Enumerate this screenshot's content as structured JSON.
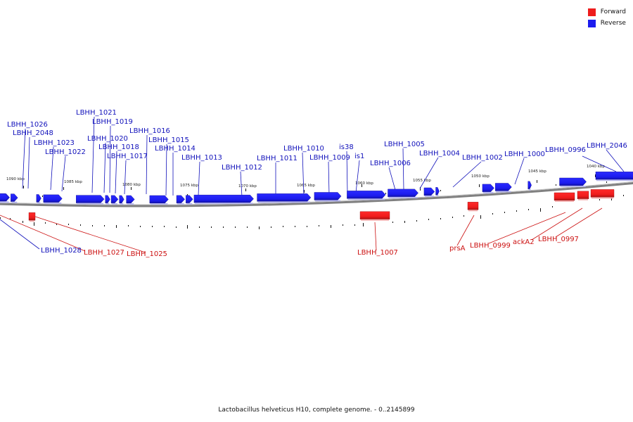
{
  "colors": {
    "forward": "#ee1c1c",
    "reverse": "#1c1cee",
    "forward_text": "#cc1111",
    "reverse_text": "#1111bb",
    "backbone": "#808080"
  },
  "legend": [
    {
      "label": "Forward",
      "color": "#ee1c1c"
    },
    {
      "label": "Reverse",
      "color": "#1c1cee"
    }
  ],
  "caption": "Lactobacillus helveticus H10, complete genome. - 0..2145899",
  "scale_unit": "kbp",
  "scale_labels": [
    "1090 kbp",
    "1085 kbp",
    "1080 kbp",
    "1075 kbp",
    "1070 kbp",
    "1065 kbp",
    "1060 kbp",
    "1055 kbp",
    "1050 kbp",
    "1045 kbp",
    "1040 kbp"
  ],
  "genes": [
    {
      "label": "LBHH_1026",
      "strand": "reverse",
      "start_kbp": 1090.4,
      "end_kbp": 1089.6
    },
    {
      "label": "LBHH_2048",
      "strand": "reverse",
      "start_kbp": 1089.5,
      "end_kbp": 1088.9
    },
    {
      "label": "LBHH_1023",
      "strand": "reverse",
      "start_kbp": 1087.3,
      "end_kbp": 1086.9
    },
    {
      "label": "LBHH_1022",
      "strand": "reverse",
      "start_kbp": 1086.7,
      "end_kbp": 1085.1
    },
    {
      "label": "LBHH_1021",
      "strand": "reverse",
      "start_kbp": 1083.9,
      "end_kbp": 1081.5
    },
    {
      "label": "LBHH_1020",
      "strand": "reverse",
      "start_kbp": 1081.4,
      "end_kbp": 1081.0
    },
    {
      "label": "LBHH_1019",
      "strand": "reverse",
      "start_kbp": 1080.9,
      "end_kbp": 1080.3
    },
    {
      "label": "LBHH_1018",
      "strand": "reverse",
      "start_kbp": 1080.2,
      "end_kbp": 1079.8
    },
    {
      "label": "LBHH_1017",
      "strand": "reverse",
      "start_kbp": 1079.6,
      "end_kbp": 1078.9
    },
    {
      "label": "LBHH_1016",
      "strand": "reverse",
      "start_kbp": 1077.6,
      "end_kbp": 1076.0
    },
    {
      "label": "LBHH_1015",
      "strand": "reverse",
      "start_kbp": 1075.3,
      "end_kbp": 1074.6
    },
    {
      "label": "LBHH_1014",
      "strand": "reverse",
      "start_kbp": 1074.5,
      "end_kbp": 1073.9
    },
    {
      "label": "LBHH_1013",
      "strand": "reverse",
      "start_kbp": 1073.8,
      "end_kbp": 1068.7
    },
    {
      "label": "LBHH_1012",
      "strand": "reverse",
      "start_kbp": 1068.4,
      "end_kbp": 1063.8
    },
    {
      "label": "LBHH_1011",
      "strand": "reverse",
      "start_kbp": 1063.5,
      "end_kbp": 1061.2
    },
    {
      "label": "LBHH_1010",
      "strand": "reverse",
      "start_kbp": 1060.7,
      "end_kbp": 1057.4
    },
    {
      "label": "LBHH_1009",
      "strand": "reverse",
      "start_kbp": 1057.2,
      "end_kbp": 1054.6
    },
    {
      "label": "is38",
      "strand": "reverse",
      "start_kbp": 1054.1,
      "end_kbp": 1053.2
    },
    {
      "label": "is1",
      "strand": "reverse",
      "start_kbp": 1053.1,
      "end_kbp": 1052.8
    },
    {
      "label": "LBHH_1006",
      "strand": "reverse",
      "start_kbp": 1049.1,
      "end_kbp": 1048.1
    },
    {
      "label": "LBHH_1005",
      "strand": "reverse",
      "start_kbp": 1048.0,
      "end_kbp": 1046.6
    },
    {
      "label": "LBHH_1004",
      "strand": "reverse",
      "start_kbp": 1045.2,
      "end_kbp": 1044.9
    },
    {
      "label": "LBHH_1002",
      "strand": "reverse",
      "start_kbp": 1042.5,
      "end_kbp": 1040.2
    },
    {
      "label": "LBHH_1000",
      "strand": "reverse",
      "start_kbp": 1039.4,
      "end_kbp": 1031.5
    },
    {
      "label": "LBHH_0996",
      "strand": "reverse",
      "start_kbp": 1025.5,
      "end_kbp": 1025.0
    },
    {
      "label": "LBHH_2046",
      "strand": "reverse",
      "start_kbp": 1024.8,
      "end_kbp": 1023.4
    },
    {
      "label": "LBHH_1028",
      "strand": "reverse",
      "start_kbp": 1091.6,
      "end_kbp": 1090.6
    },
    {
      "label": "LBHH_1027",
      "strand": "forward",
      "start_kbp": 1091.9,
      "end_kbp": 1091.7
    },
    {
      "label": "LBHH_1025",
      "strand": "forward",
      "start_kbp": 1088.7,
      "end_kbp": 1088.2
    },
    {
      "label": "LBHH_1007",
      "strand": "forward",
      "start_kbp": 1051.6,
      "end_kbp": 1048.5
    },
    {
      "label": "prsA",
      "strand": "forward",
      "start_kbp": 1039.4,
      "end_kbp": 1038.2
    },
    {
      "label": "LBHH_0999",
      "strand": "forward",
      "start_kbp": 1030.8,
      "end_kbp": 1028.6
    },
    {
      "label": "ackA2",
      "strand": "forward",
      "start_kbp": 1028.4,
      "end_kbp": 1027.1
    },
    {
      "label": "LBHH_0997",
      "strand": "forward",
      "start_kbp": 1026.9,
      "end_kbp": 1024.3
    }
  ]
}
